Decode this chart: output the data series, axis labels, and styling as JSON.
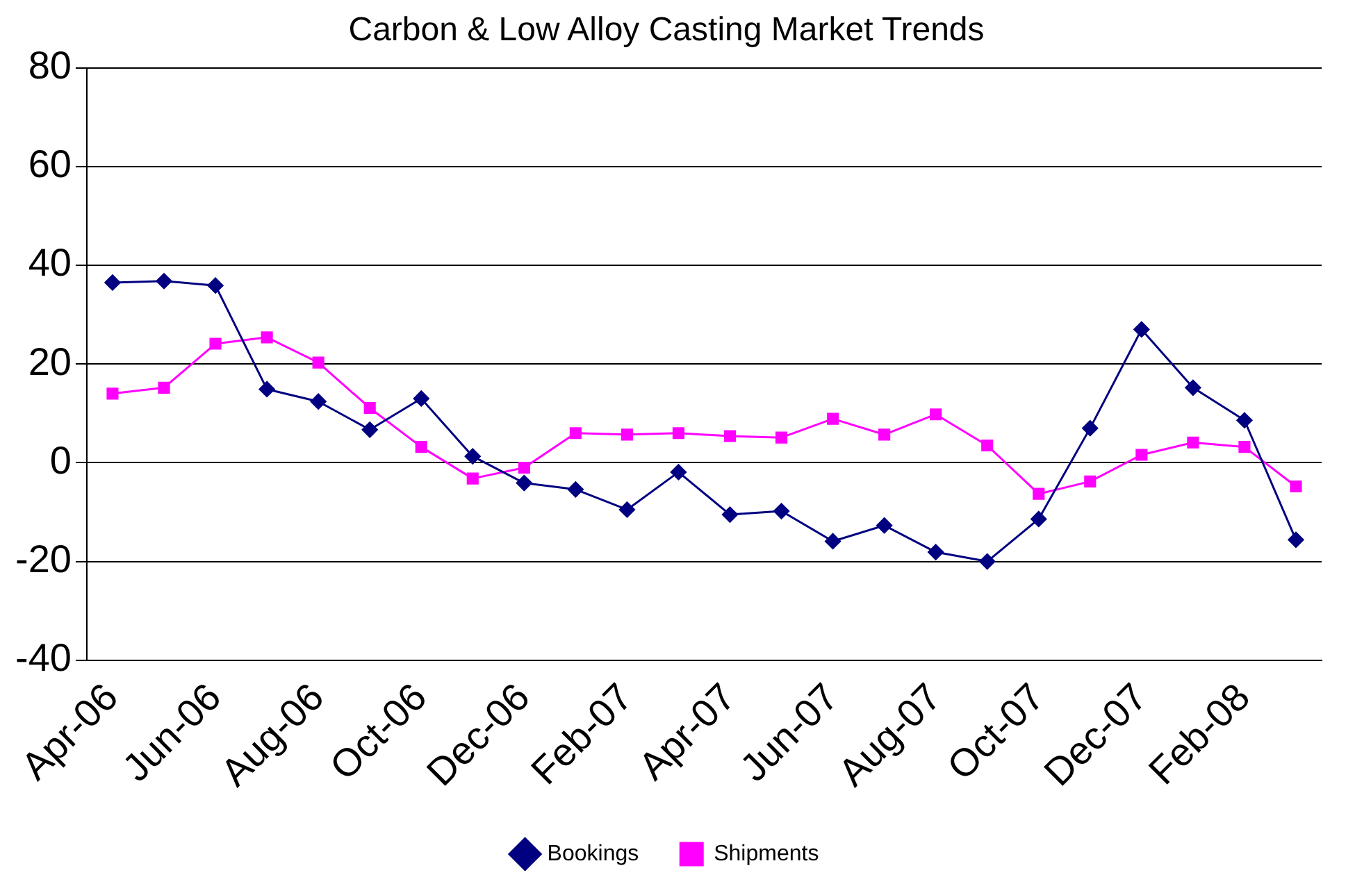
{
  "chart_data": {
    "type": "line",
    "title": "Carbon & Low Alloy Casting Market Trends",
    "categories": [
      "Apr-06",
      null,
      "Jun-06",
      null,
      "Aug-06",
      null,
      "Oct-06",
      null,
      "Dec-06",
      null,
      "Feb-07",
      null,
      "Apr-07",
      null,
      "Jun-07",
      null,
      "Aug-07",
      null,
      "Oct-07",
      null,
      "Dec-07",
      null,
      "Feb-08",
      null
    ],
    "series": [
      {
        "name": "Bookings",
        "color": "#000080",
        "marker": "diamond",
        "values": [
          36.5,
          36.8,
          35.9,
          14.9,
          12.4,
          6.7,
          13,
          1.3,
          -4.1,
          -5.4,
          -9.5,
          -1.9,
          -10.5,
          -9.8,
          -15.9,
          -12.7,
          -18.1,
          -20,
          -11.4,
          7,
          27,
          15.2,
          8.6,
          -15.6
        ]
      },
      {
        "name": "Shipments",
        "color": "#ff00ff",
        "marker": "square",
        "values": [
          14,
          15.2,
          24.1,
          25.4,
          20.3,
          11.1,
          3.2,
          -3.2,
          -1,
          6,
          5.7,
          6,
          5.4,
          5.1,
          8.9,
          5.7,
          9.8,
          3.5,
          -6.3,
          -3.8,
          1.6,
          4.1,
          3.2,
          -4.8
        ]
      }
    ],
    "ylim": [
      -40,
      80
    ],
    "yticks": [
      -40,
      -20,
      0,
      20,
      40,
      60,
      80
    ],
    "grid": "y",
    "legend": "bottom"
  }
}
